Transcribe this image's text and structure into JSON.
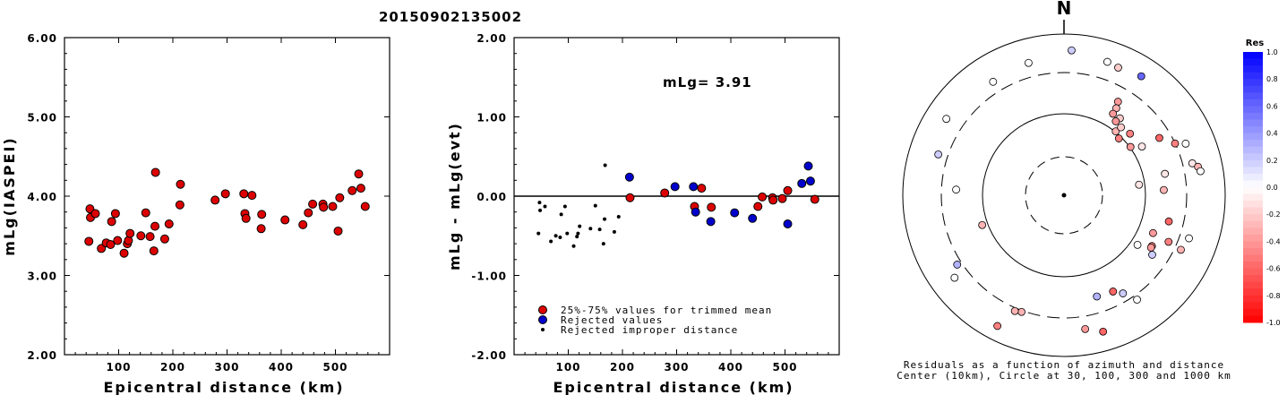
{
  "title": "20150902135002",
  "chart_data": [
    {
      "type": "scatter",
      "id": "left",
      "xlabel": "Epicentral distance (km)",
      "ylabel": "mLg(IASPEI)",
      "xlim": [
        0,
        600
      ],
      "ylim": [
        2.0,
        6.0
      ],
      "x_ticks": [
        "100",
        "200",
        "300",
        "400",
        "500"
      ],
      "y_ticks": [
        "2.00",
        "3.00",
        "4.00",
        "5.00",
        "6.00"
      ],
      "series": [
        {
          "points": [
            [
              45,
              3.43
            ],
            [
              47,
              3.84
            ],
            [
              48,
              3.73
            ],
            [
              57,
              3.78
            ],
            [
              68,
              3.34
            ],
            [
              77,
              3.41
            ],
            [
              85,
              3.39
            ],
            [
              87,
              3.68
            ],
            [
              94,
              3.78
            ],
            [
              98,
              3.44
            ],
            [
              110,
              3.28
            ],
            [
              116,
              3.4
            ],
            [
              118,
              3.44
            ],
            [
              121,
              3.53
            ],
            [
              141,
              3.5
            ],
            [
              150,
              3.79
            ],
            [
              158,
              3.49
            ],
            [
              165,
              3.31
            ],
            [
              167,
              3.62
            ],
            [
              168,
              4.3
            ],
            [
              185,
              3.46
            ],
            [
              193,
              3.65
            ],
            [
              213,
              3.89
            ],
            [
              214,
              4.15
            ],
            [
              278,
              3.95
            ],
            [
              297,
              4.03
            ],
            [
              331,
              4.03
            ],
            [
              333,
              3.78
            ],
            [
              335,
              3.72
            ],
            [
              346,
              4.01
            ],
            [
              363,
              3.59
            ],
            [
              364,
              3.77
            ],
            [
              407,
              3.7
            ],
            [
              440,
              3.64
            ],
            [
              450,
              3.79
            ],
            [
              458,
              3.9
            ],
            [
              477,
              3.9
            ],
            [
              478,
              3.86
            ],
            [
              495,
              3.87
            ],
            [
              505,
              3.56
            ],
            [
              508,
              3.98
            ],
            [
              531,
              4.07
            ],
            [
              543,
              4.28
            ],
            [
              547,
              4.1
            ],
            [
              555,
              3.87
            ]
          ]
        }
      ]
    },
    {
      "type": "scatter",
      "id": "middle",
      "xlabel": "Epicentral distance (km)",
      "ylabel": "mLg - mLg(evt)",
      "xlim": [
        0,
        600
      ],
      "ylim": [
        -2.0,
        2.0
      ],
      "x_ticks": [
        "100",
        "200",
        "300",
        "400",
        "500"
      ],
      "y_ticks": [
        "-2.00",
        "-1.00",
        "0.00",
        "1.00",
        "2.00"
      ],
      "annotation": "mLg= 3.91",
      "reference_line": 0.0,
      "legend": {
        "position": "bottom-left",
        "entries": [
          "25%-75% values for trimmed mean",
          "Rejected values",
          "Rejected improper distance"
        ]
      },
      "series": [
        {
          "name": "25%-75% values for trimmed mean",
          "color": "#dd0000",
          "points": [
            [
              214,
              -0.02
            ],
            [
              278,
              0.04
            ],
            [
              333,
              -0.13
            ],
            [
              346,
              0.1
            ],
            [
              364,
              -0.14
            ],
            [
              450,
              -0.13
            ],
            [
              458,
              -0.01
            ],
            [
              477,
              -0.02
            ],
            [
              478,
              -0.05
            ],
            [
              495,
              -0.03
            ],
            [
              505,
              0.07
            ],
            [
              555,
              -0.04
            ]
          ]
        },
        {
          "name": "Rejected values",
          "color": "#0000cc",
          "points": [
            [
              213,
              0.24
            ],
            [
              297,
              0.12
            ],
            [
              331,
              0.12
            ],
            [
              335,
              -0.2
            ],
            [
              363,
              -0.32
            ],
            [
              407,
              -0.21
            ],
            [
              440,
              -0.28
            ],
            [
              505,
              -0.35
            ],
            [
              531,
              0.16
            ],
            [
              543,
              0.38
            ],
            [
              547,
              0.19
            ]
          ]
        },
        {
          "name": "Rejected improper distance",
          "color": "#000000",
          "points": [
            [
              45,
              -0.47
            ],
            [
              47,
              -0.08
            ],
            [
              48,
              -0.18
            ],
            [
              57,
              -0.13
            ],
            [
              68,
              -0.57
            ],
            [
              77,
              -0.5
            ],
            [
              85,
              -0.52
            ],
            [
              87,
              -0.23
            ],
            [
              94,
              -0.13
            ],
            [
              98,
              -0.47
            ],
            [
              110,
              -0.63
            ],
            [
              116,
              -0.51
            ],
            [
              118,
              -0.47
            ],
            [
              121,
              -0.38
            ],
            [
              141,
              -0.41
            ],
            [
              150,
              -0.12
            ],
            [
              158,
              -0.42
            ],
            [
              165,
              -0.6
            ],
            [
              167,
              -0.29
            ],
            [
              168,
              0.39
            ],
            [
              185,
              -0.45
            ],
            [
              193,
              -0.26
            ]
          ]
        }
      ]
    },
    {
      "type": "polar",
      "id": "right",
      "north_label": "N",
      "caption_line1": "Residuals as a function of azimuth and distance",
      "caption_line2": "Center (10km), Circle at 30, 100, 300 and 1000 km",
      "colorbar": {
        "title": "Res",
        "labels": [
          "1.0",
          "0.8",
          "0.6",
          "0.4",
          "0.2",
          "0.0",
          "-0.2",
          "-0.4",
          "-0.6",
          "-0.8",
          "-1.0"
        ],
        "range": [
          -1.0,
          1.0
        ]
      },
      "points": [
        [
          3,
          0.9,
          0.2
        ],
        [
          33,
          0.88,
          0.6
        ],
        [
          18,
          0.87,
          0.0
        ],
        [
          23,
          0.86,
          -0.2
        ],
        [
          -15,
          0.85,
          0.0
        ],
        [
          -32,
          0.83,
          0.0
        ],
        [
          -57,
          0.87,
          0.0
        ],
        [
          -72,
          0.82,
          0.2
        ],
        [
          30,
          0.67,
          -0.4
        ],
        [
          31,
          0.63,
          -0.3
        ],
        [
          31,
          0.59,
          -0.4
        ],
        [
          36,
          0.59,
          -0.2
        ],
        [
          35,
          0.56,
          -0.4
        ],
        [
          39,
          0.51,
          -0.3
        ],
        [
          40,
          0.55,
          -0.2
        ],
        [
          44,
          0.49,
          -0.5
        ],
        [
          47,
          0.56,
          -0.5
        ],
        [
          54,
          0.51,
          -0.4
        ],
        [
          58,
          0.57,
          -0.1
        ],
        [
          59,
          0.69,
          -0.6
        ],
        [
          65,
          0.76,
          -0.5
        ],
        [
          67,
          0.82,
          0.0
        ],
        [
          76,
          0.82,
          -0.1
        ],
        [
          78,
          0.85,
          -0.3
        ],
        [
          80,
          0.86,
          0.0
        ],
        [
          78,
          0.64,
          -0.1
        ],
        [
          82,
          0.47,
          -0.1
        ],
        [
          87,
          0.62,
          -0.3
        ],
        [
          104,
          0.67,
          -0.6
        ],
        [
          109,
          0.82,
          0.0
        ],
        [
          113,
          0.6,
          -0.4
        ],
        [
          114,
          0.71,
          -0.5
        ],
        [
          115,
          0.8,
          -0.3
        ],
        [
          120,
          0.63,
          -0.5
        ],
        [
          124,
          0.66,
          0.2
        ],
        [
          124,
          0.55,
          0.0
        ],
        [
          121,
          0.63,
          -0.4
        ],
        [
          145,
          0.79,
          0.0
        ],
        [
          149,
          0.71,
          0.2
        ],
        [
          153,
          0.67,
          -0.6
        ],
        [
          162,
          0.66,
          0.3
        ],
        [
          164,
          0.88,
          -0.6
        ],
        [
          171,
          0.84,
          -0.4
        ],
        [
          200,
          0.77,
          -0.3
        ],
        [
          203,
          0.78,
          -0.3
        ],
        [
          207,
          0.91,
          -0.5
        ],
        [
          -87,
          0.67,
          0.0
        ],
        [
          -110,
          0.54,
          -0.3
        ],
        [
          -123,
          0.79,
          0.3
        ],
        [
          -127,
          0.85,
          0.0
        ]
      ]
    }
  ]
}
